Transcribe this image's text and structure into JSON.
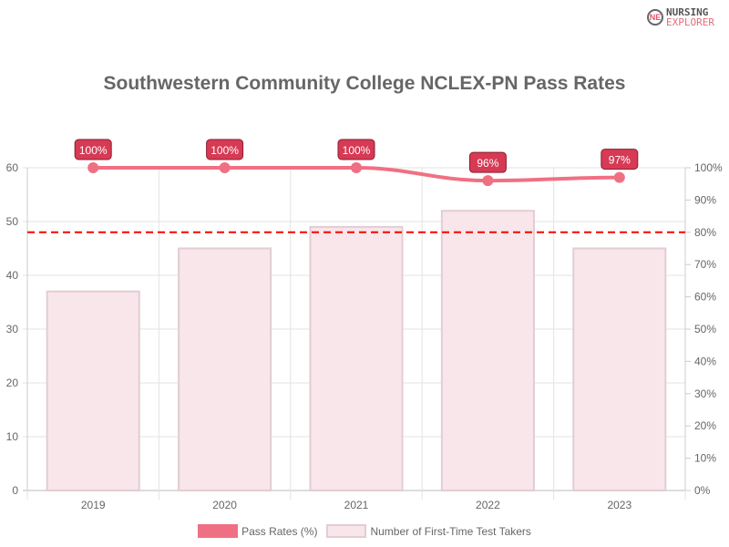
{
  "logo": {
    "line1": "NURSING",
    "line2": "EXPLORER",
    "mark": "NE"
  },
  "chart_data": {
    "type": "bar+line",
    "title": "Southwestern Community College NCLEX-PN Pass Rates",
    "categories": [
      "2019",
      "2020",
      "2021",
      "2022",
      "2023"
    ],
    "series": [
      {
        "name": "Pass Rates (%)",
        "type": "line",
        "axis": "right",
        "values": [
          100,
          100,
          100,
          96,
          97
        ],
        "labels": [
          "100%",
          "100%",
          "100%",
          "96%",
          "97%"
        ],
        "color": "#f07083"
      },
      {
        "name": "Number of First-Time Test Takers",
        "type": "bar",
        "axis": "left",
        "values": [
          37,
          45,
          49,
          52,
          45
        ],
        "color": "#f8e6ea",
        "border": "#e2cdd3"
      }
    ],
    "reference_line": {
      "axis": "right",
      "value": 80,
      "color": "#ff0000",
      "style": "dashed"
    },
    "y_left": {
      "ylim": [
        0,
        60
      ],
      "ticks": [
        "0",
        "10",
        "20",
        "30",
        "40",
        "50",
        "60"
      ]
    },
    "y_right": {
      "ylim": [
        0,
        100
      ],
      "ticks": [
        "0%",
        "10%",
        "20%",
        "30%",
        "40%",
        "50%",
        "60%",
        "70%",
        "80%",
        "90%",
        "100%"
      ]
    },
    "grid": true,
    "legend": "bottom",
    "label_color": "#d63a55"
  }
}
